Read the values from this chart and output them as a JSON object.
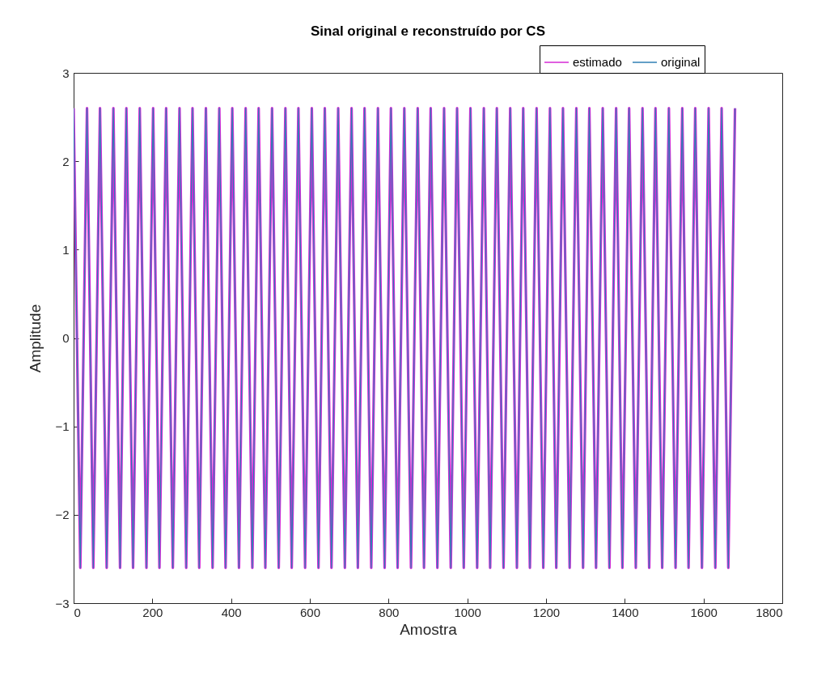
{
  "chart_data": {
    "type": "line",
    "title": "Sinal original e reconstruído por CS",
    "xlabel": "Amostra",
    "ylabel": "Amplitude",
    "x": [
      0,
      17,
      34,
      50,
      67,
      84,
      101,
      118,
      134,
      151,
      168,
      185,
      202,
      218,
      235,
      252,
      269,
      286,
      302,
      319,
      336,
      353,
      370,
      386,
      403,
      420,
      437,
      454,
      470,
      487,
      504,
      521,
      538,
      554,
      571,
      588,
      605,
      622,
      638,
      655,
      672,
      689,
      706,
      722,
      739,
      756,
      773,
      790,
      806,
      823,
      840,
      857,
      874,
      890,
      907,
      924,
      941,
      958,
      974,
      991,
      1008,
      1025,
      1042,
      1058,
      1075,
      1092,
      1109,
      1126,
      1142,
      1159,
      1176,
      1193,
      1210,
      1226,
      1243,
      1260,
      1277,
      1294,
      1310,
      1327,
      1344,
      1361,
      1378,
      1394,
      1411,
      1428,
      1445,
      1462,
      1478,
      1495,
      1512,
      1529,
      1546,
      1562,
      1579,
      1596,
      1613,
      1630,
      1646,
      1663,
      1680
    ],
    "series": [
      {
        "name": "estimado",
        "color": "#d62ad6",
        "values": [
          2.6,
          -2.6,
          2.6,
          -2.6,
          2.6,
          -2.6,
          2.6,
          -2.6,
          2.6,
          -2.6,
          2.6,
          -2.6,
          2.6,
          -2.6,
          2.6,
          -2.6,
          2.6,
          -2.6,
          2.6,
          -2.6,
          2.6,
          -2.6,
          2.6,
          -2.6,
          2.6,
          -2.6,
          2.6,
          -2.6,
          2.6,
          -2.6,
          2.6,
          -2.6,
          2.6,
          -2.6,
          2.6,
          -2.6,
          2.6,
          -2.6,
          2.6,
          -2.6,
          2.6,
          -2.6,
          2.6,
          -2.6,
          2.6,
          -2.6,
          2.6,
          -2.6,
          2.6,
          -2.6,
          2.6,
          -2.6,
          2.6,
          -2.6,
          2.6,
          -2.6,
          2.6,
          -2.6,
          2.6,
          -2.6,
          2.6,
          -2.6,
          2.6,
          -2.6,
          2.6,
          -2.6,
          2.6,
          -2.6,
          2.6,
          -2.6,
          2.6,
          -2.6,
          2.6,
          -2.6,
          2.6,
          -2.6,
          2.6,
          -2.6,
          2.6,
          -2.6,
          2.6,
          -2.6,
          2.6,
          -2.6,
          2.6,
          -2.6,
          2.6,
          -2.6,
          2.6,
          -2.6,
          2.6,
          -2.6,
          2.6,
          -2.6,
          2.6,
          -2.6,
          2.6,
          -2.6,
          2.6,
          -2.6,
          2.6
        ]
      },
      {
        "name": "original",
        "color": "#2f7fb5",
        "values": [
          2.6,
          -2.6,
          2.6,
          -2.6,
          2.6,
          -2.6,
          2.6,
          -2.6,
          2.6,
          -2.6,
          2.6,
          -2.6,
          2.6,
          -2.6,
          2.6,
          -2.6,
          2.6,
          -2.6,
          2.6,
          -2.6,
          2.6,
          -2.6,
          2.6,
          -2.6,
          2.6,
          -2.6,
          2.6,
          -2.6,
          2.6,
          -2.6,
          2.6,
          -2.6,
          2.6,
          -2.6,
          2.6,
          -2.6,
          2.6,
          -2.6,
          2.6,
          -2.6,
          2.6,
          -2.6,
          2.6,
          -2.6,
          2.6,
          -2.6,
          2.6,
          -2.6,
          2.6,
          -2.6,
          2.6,
          -2.6,
          2.6,
          -2.6,
          2.6,
          -2.6,
          2.6,
          -2.6,
          2.6,
          -2.6,
          2.6,
          -2.6,
          2.6,
          -2.6,
          2.6,
          -2.6,
          2.6,
          -2.6,
          2.6,
          -2.6,
          2.6,
          -2.6,
          2.6,
          -2.6,
          2.6,
          -2.6,
          2.6,
          -2.6,
          2.6,
          -2.6,
          2.6,
          -2.6,
          2.6,
          -2.6,
          2.6,
          -2.6,
          2.6,
          -2.6,
          2.6,
          -2.6,
          2.6,
          -2.6,
          2.6,
          -2.6,
          2.6,
          -2.6,
          2.6,
          -2.6,
          2.6,
          -2.6,
          2.6
        ]
      }
    ],
    "xlim": [
      0,
      1800
    ],
    "xticks": [
      0,
      200,
      400,
      600,
      800,
      1000,
      1200,
      1400,
      1600,
      1800
    ],
    "ylim": [
      -3,
      3
    ],
    "yticks": [
      -3,
      -2,
      -1,
      0,
      1,
      2,
      3
    ],
    "legend": "top right",
    "line_style": "solid"
  }
}
